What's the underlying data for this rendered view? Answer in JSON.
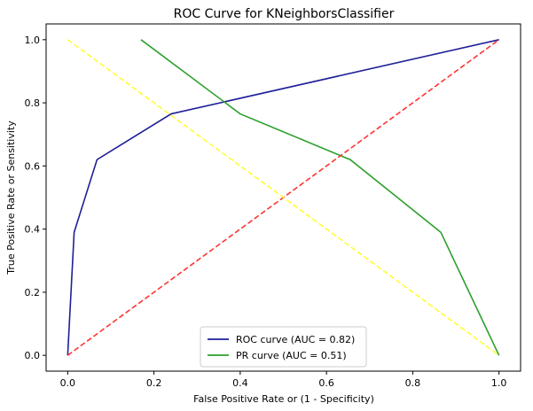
{
  "chart_data": {
    "type": "line",
    "title": "ROC Curve for KNeighborsClassifier",
    "xlabel": "False Positive Rate or (1 - Specificity)",
    "ylabel": "True Positive Rate or Sensitivity",
    "xlim": [
      -0.05,
      1.05
    ],
    "ylim": [
      -0.05,
      1.05
    ],
    "xticks": [
      "0.0",
      "0.2",
      "0.4",
      "0.6",
      "0.8",
      "1.0"
    ],
    "yticks": [
      "0.0",
      "0.2",
      "0.4",
      "0.6",
      "0.8",
      "1.0"
    ],
    "grid": false,
    "legend_position": "lower-center",
    "series": [
      {
        "name": "ROC curve (AUC = 0.82)",
        "color": "#1f1f99",
        "style": "solid",
        "in_legend": true,
        "x": [
          0.0,
          0.015,
          0.068,
          0.24,
          1.0
        ],
        "y": [
          0.0,
          0.39,
          0.62,
          0.765,
          1.0
        ]
      },
      {
        "name": "PR curve (AUC = 0.51)",
        "color": "#2ca02c",
        "style": "solid",
        "in_legend": true,
        "x": [
          0.17,
          0.4,
          0.655,
          0.865,
          1.0
        ],
        "y": [
          1.0,
          0.765,
          0.62,
          0.39,
          0.0
        ]
      },
      {
        "color": "#ff3333",
        "style": "dashed",
        "in_legend": false,
        "x": [
          0.0,
          1.0
        ],
        "y": [
          0.0,
          1.0
        ]
      },
      {
        "color": "#ffff33",
        "style": "dashed",
        "in_legend": false,
        "x": [
          0.0,
          1.0
        ],
        "y": [
          1.0,
          0.0
        ]
      }
    ]
  }
}
